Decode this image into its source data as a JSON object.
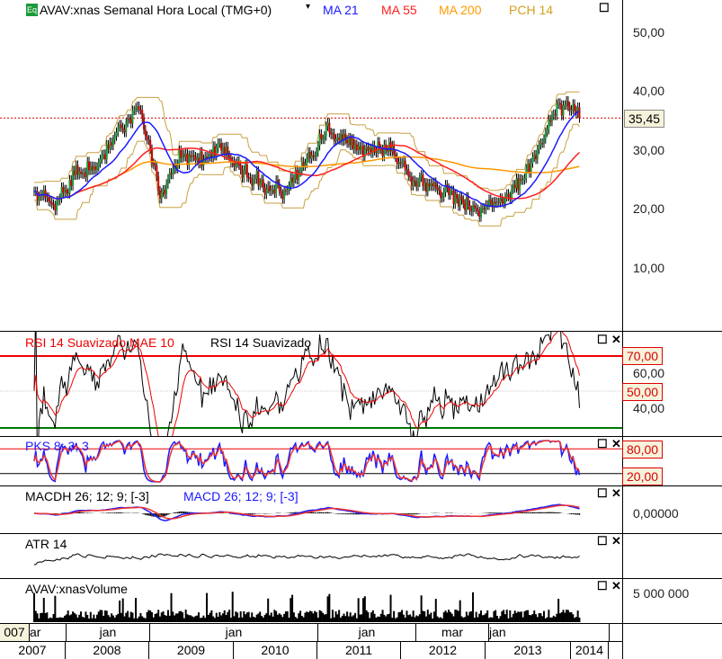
{
  "header": {
    "symbol": "AVAV:xnas Semanal Hora Local (TMG+0)",
    "ma21": "MA 21",
    "ma55": "MA 55",
    "ma200": "MA 200",
    "pch14": "PCH 14",
    "badge": "Eq"
  },
  "colors": {
    "close": "#000000",
    "ma21": "#1a1aff",
    "ma55": "#ff2020",
    "ma200": "#ff9900",
    "pch14": "#c8a040",
    "last": "#dd0000"
  },
  "price_axis": {
    "ticks": [
      "50,00",
      "40,00",
      "30,00",
      "20,00",
      "10,00"
    ],
    "last": "35,45"
  },
  "rsi": {
    "label1": "RSI 14 Suavizado MAE 10",
    "label2": "RSI 14 Suavizado",
    "ticks": [
      "60,00",
      "40,00"
    ],
    "box_high": "70,00",
    "box_mid": "50,00"
  },
  "pks": {
    "label": "PKS 8; 3; 3",
    "box_high": "80,00",
    "box_low": "20,00"
  },
  "macd": {
    "label1": "MACDH 26; 12; 9; [-3]",
    "label2": "MACD 26; 12; 9; [-3]",
    "tick": "0,00000"
  },
  "atr": {
    "label": "ATR 14"
  },
  "volume": {
    "label": "AVAV:xnasVolume",
    "tick": "5 000 000"
  },
  "time_axis": {
    "months": [
      "007",
      "ar",
      "jan",
      "jan",
      "jan",
      "mar",
      "jan"
    ],
    "years": [
      "2007",
      "2008",
      "2009",
      "2010",
      "2011",
      "2012",
      "2013",
      "2014"
    ]
  },
  "chart_data": {
    "type": "line",
    "title": "AVAV:xnas Semanal",
    "ylim": [
      0,
      55
    ],
    "last_value": 35.45,
    "x": [
      "2007-Q3",
      "2007-Q4",
      "2008-Q1",
      "2008-Q2",
      "2008-Q3",
      "2008-Q4",
      "2009-Q1",
      "2009-Q2",
      "2009-Q3",
      "2009-Q4",
      "2010-Q1",
      "2010-Q2",
      "2010-Q3",
      "2010-Q4",
      "2011-Q1",
      "2011-Q2",
      "2011-Q3",
      "2011-Q4",
      "2012-Q1",
      "2012-Q2",
      "2012-Q3",
      "2012-Q4",
      "2013-Q1",
      "2013-Q2",
      "2013-Q3",
      "2013-Q4",
      "2014-Q1"
    ],
    "series": [
      {
        "name": "AVAV:xnas",
        "values": [
          23,
          21,
          26,
          27,
          33,
          38,
          22,
          29,
          29,
          30,
          26,
          24,
          23,
          28,
          33,
          31,
          30,
          30,
          25,
          24,
          22,
          20,
          21,
          24,
          30,
          38,
          35.45
        ]
      }
    ],
    "indicators": [
      "MA 21",
      "MA 55",
      "MA 200",
      "PCH 14",
      "RSI 14 Suavizado",
      "PKS 8; 3; 3",
      "MACD 26; 12; 9",
      "ATR 14",
      "Volume"
    ]
  }
}
